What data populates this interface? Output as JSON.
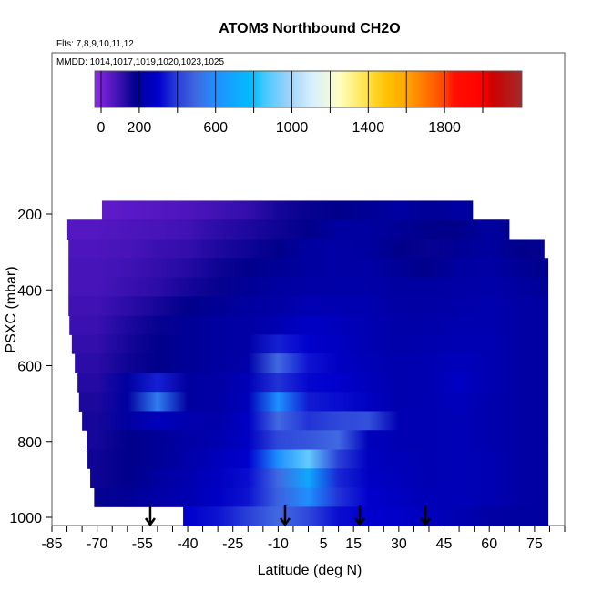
{
  "chart_data": {
    "type": "heatmap",
    "title": "ATOM3 Northbound CH2O",
    "subtitle": "Flts: 7,8,9,10,11,12",
    "annotation": "MMDD: 1014,1017,1019,1020,1023,1025",
    "xlabel": "Latitude (deg N)",
    "ylabel": "PSXC (mbar)",
    "xlim": [
      -85,
      85
    ],
    "ylim": [
      1021,
      -225
    ],
    "x_ticks": [
      -85,
      -80,
      -75,
      -70,
      -65,
      -60,
      -55,
      -50,
      -45,
      -40,
      -35,
      -30,
      -25,
      -20,
      -15,
      -10,
      -5,
      0,
      5,
      10,
      15,
      20,
      25,
      30,
      35,
      40,
      45,
      50,
      55,
      60,
      65,
      70,
      75,
      80,
      85
    ],
    "x_tick_labels": [
      "-85",
      "-70",
      "-55",
      "-40",
      "-25",
      "-10",
      "5",
      "15",
      "30",
      "45",
      "60",
      "75"
    ],
    "x_tick_label_values": [
      -85,
      -70,
      -55,
      -40,
      -25,
      -10,
      5,
      15,
      30,
      45,
      60,
      75
    ],
    "y_tick_labels": [
      "200",
      "400",
      "600",
      "800",
      "1000"
    ],
    "y_tick_values": [
      200,
      400,
      600,
      800,
      1000
    ],
    "colorbar": {
      "range": [
        -33,
        2205
      ],
      "tick_values": [
        0,
        200,
        400,
        600,
        800,
        1000,
        1200,
        1400,
        1600,
        1800,
        2000
      ],
      "labels": [
        "0",
        "200",
        "600",
        "1000",
        "1400",
        "1800"
      ],
      "label_values": [
        0,
        200,
        600,
        1000,
        1400,
        1800
      ],
      "stops": [
        [
          -33,
          "#8a2be2"
        ],
        [
          0,
          "#7a22dc"
        ],
        [
          100,
          "#3a10b0"
        ],
        [
          180,
          "#00008b"
        ],
        [
          200,
          "#0000a0"
        ],
        [
          300,
          "#0000cd"
        ],
        [
          400,
          "#2a40d8"
        ],
        [
          500,
          "#4169e1"
        ],
        [
          600,
          "#1e90ff"
        ],
        [
          800,
          "#00bfff"
        ],
        [
          850,
          "#40c8ff"
        ],
        [
          1000,
          "#a8d4f8"
        ],
        [
          1100,
          "#d4f0ff"
        ],
        [
          1200,
          "#f0f8e0"
        ],
        [
          1250,
          "#ffffc0"
        ],
        [
          1400,
          "#ffe040"
        ],
        [
          1500,
          "#ffc000"
        ],
        [
          1600,
          "#ffa500"
        ],
        [
          1800,
          "#ff4500"
        ],
        [
          1850,
          "#ff1000"
        ],
        [
          2000,
          "#ff0000"
        ],
        [
          2050,
          "#cd0000"
        ],
        [
          2205,
          "#a52a2a"
        ]
      ]
    },
    "lat_nodes": [
      -80,
      -70,
      -60,
      -50,
      -40,
      -30,
      -20,
      -10,
      0,
      10,
      20,
      30,
      40,
      50,
      60,
      70,
      80
    ],
    "rows": [
      {
        "p": [
          165,
          215
        ],
        "lat": [
          -68.4,
          54.6
        ],
        "values": [
          40,
          40,
          50,
          60,
          70,
          90,
          110,
          150,
          170,
          180,
          190,
          200,
          190,
          200,
          200,
          200,
          200
        ]
      },
      {
        "p": [
          215,
          266
        ],
        "lat": [
          -79.9,
          66.7
        ],
        "values": [
          60,
          60,
          70,
          80,
          90,
          120,
          140,
          160,
          180,
          200,
          200,
          190,
          180,
          180,
          200,
          180,
          170
        ]
      },
      {
        "p": [
          266,
          316
        ],
        "lat": [
          -79.5,
          78.3
        ],
        "values": [
          70,
          70,
          80,
          100,
          110,
          140,
          160,
          180,
          200,
          210,
          200,
          180,
          170,
          190,
          200,
          180,
          170
        ]
      },
      {
        "p": [
          316,
          367
        ],
        "lat": [
          -79.5,
          79.6
        ],
        "values": [
          80,
          80,
          90,
          110,
          130,
          160,
          180,
          190,
          200,
          210,
          210,
          190,
          180,
          200,
          210,
          190,
          180
        ]
      },
      {
        "p": [
          367,
          417
        ],
        "lat": [
          -79.5,
          79.6
        ],
        "values": [
          80,
          80,
          100,
          120,
          150,
          170,
          190,
          200,
          210,
          220,
          220,
          200,
          200,
          210,
          220,
          200,
          190
        ]
      },
      {
        "p": [
          417,
          468
        ],
        "lat": [
          -79.5,
          79.6
        ],
        "values": [
          90,
          90,
          120,
          150,
          180,
          190,
          200,
          210,
          240,
          240,
          230,
          210,
          210,
          220,
          230,
          210,
          200
        ]
      },
      {
        "p": [
          468,
          518
        ],
        "lat": [
          -79.2,
          79.6
        ],
        "values": [
          100,
          100,
          140,
          170,
          190,
          200,
          210,
          240,
          280,
          260,
          240,
          220,
          220,
          230,
          230,
          210,
          200
        ]
      },
      {
        "p": [
          518,
          568
        ],
        "lat": [
          -78.4,
          79.6
        ],
        "values": [
          110,
          110,
          150,
          180,
          190,
          200,
          210,
          350,
          300,
          270,
          240,
          220,
          230,
          240,
          240,
          210,
          200
        ]
      },
      {
        "p": [
          568,
          619
        ],
        "lat": [
          -77.4,
          79.6
        ],
        "values": [
          120,
          120,
          160,
          180,
          190,
          200,
          220,
          500,
          330,
          280,
          250,
          230,
          240,
          260,
          240,
          210,
          200
        ]
      },
      {
        "p": [
          619,
          669
        ],
        "lat": [
          -76.5,
          79.6
        ],
        "values": [
          130,
          130,
          200,
          350,
          200,
          210,
          250,
          380,
          310,
          300,
          260,
          230,
          240,
          280,
          240,
          210,
          200
        ]
      },
      {
        "p": [
          669,
          720
        ],
        "lat": [
          -76.0,
          79.6
        ],
        "values": [
          140,
          140,
          200,
          550,
          200,
          210,
          260,
          600,
          340,
          320,
          270,
          230,
          240,
          260,
          230,
          210,
          200
        ]
      },
      {
        "p": [
          720,
          770
        ],
        "lat": [
          -75.0,
          79.6
        ],
        "values": [
          150,
          150,
          200,
          260,
          230,
          220,
          280,
          500,
          380,
          420,
          440,
          240,
          240,
          250,
          230,
          210,
          200
        ]
      },
      {
        "p": [
          770,
          821
        ],
        "lat": [
          -73.5,
          79.6
        ],
        "values": [
          150,
          150,
          180,
          190,
          210,
          230,
          280,
          420,
          450,
          500,
          260,
          240,
          240,
          250,
          230,
          210,
          200
        ]
      },
      {
        "p": [
          821,
          871
        ],
        "lat": [
          -73.2,
          79.6
        ],
        "values": [
          160,
          160,
          180,
          190,
          220,
          260,
          300,
          600,
          900,
          400,
          270,
          250,
          240,
          250,
          240,
          210,
          200
        ]
      },
      {
        "p": [
          871,
          922
        ],
        "lat": [
          -72.3,
          79.6
        ],
        "values": [
          160,
          160,
          180,
          200,
          230,
          270,
          320,
          500,
          700,
          360,
          280,
          260,
          240,
          250,
          240,
          210,
          200
        ]
      },
      {
        "p": [
          922,
          972
        ],
        "lat": [
          -71.0,
          79.6
        ],
        "values": [
          170,
          170,
          190,
          210,
          240,
          280,
          330,
          480,
          600,
          380,
          300,
          270,
          250,
          250,
          240,
          210,
          200
        ]
      },
      {
        "p": [
          972,
          1021
        ],
        "lat": [
          -41.5,
          79.6
        ],
        "values": [
          300,
          300,
          300,
          300,
          300,
          330,
          400,
          500,
          420,
          320,
          300,
          290,
          260,
          240,
          210,
          200,
          200
        ]
      }
    ],
    "flight_markers_lat": [
      -52.4,
      -7.7,
      17.1,
      38.9
    ]
  }
}
